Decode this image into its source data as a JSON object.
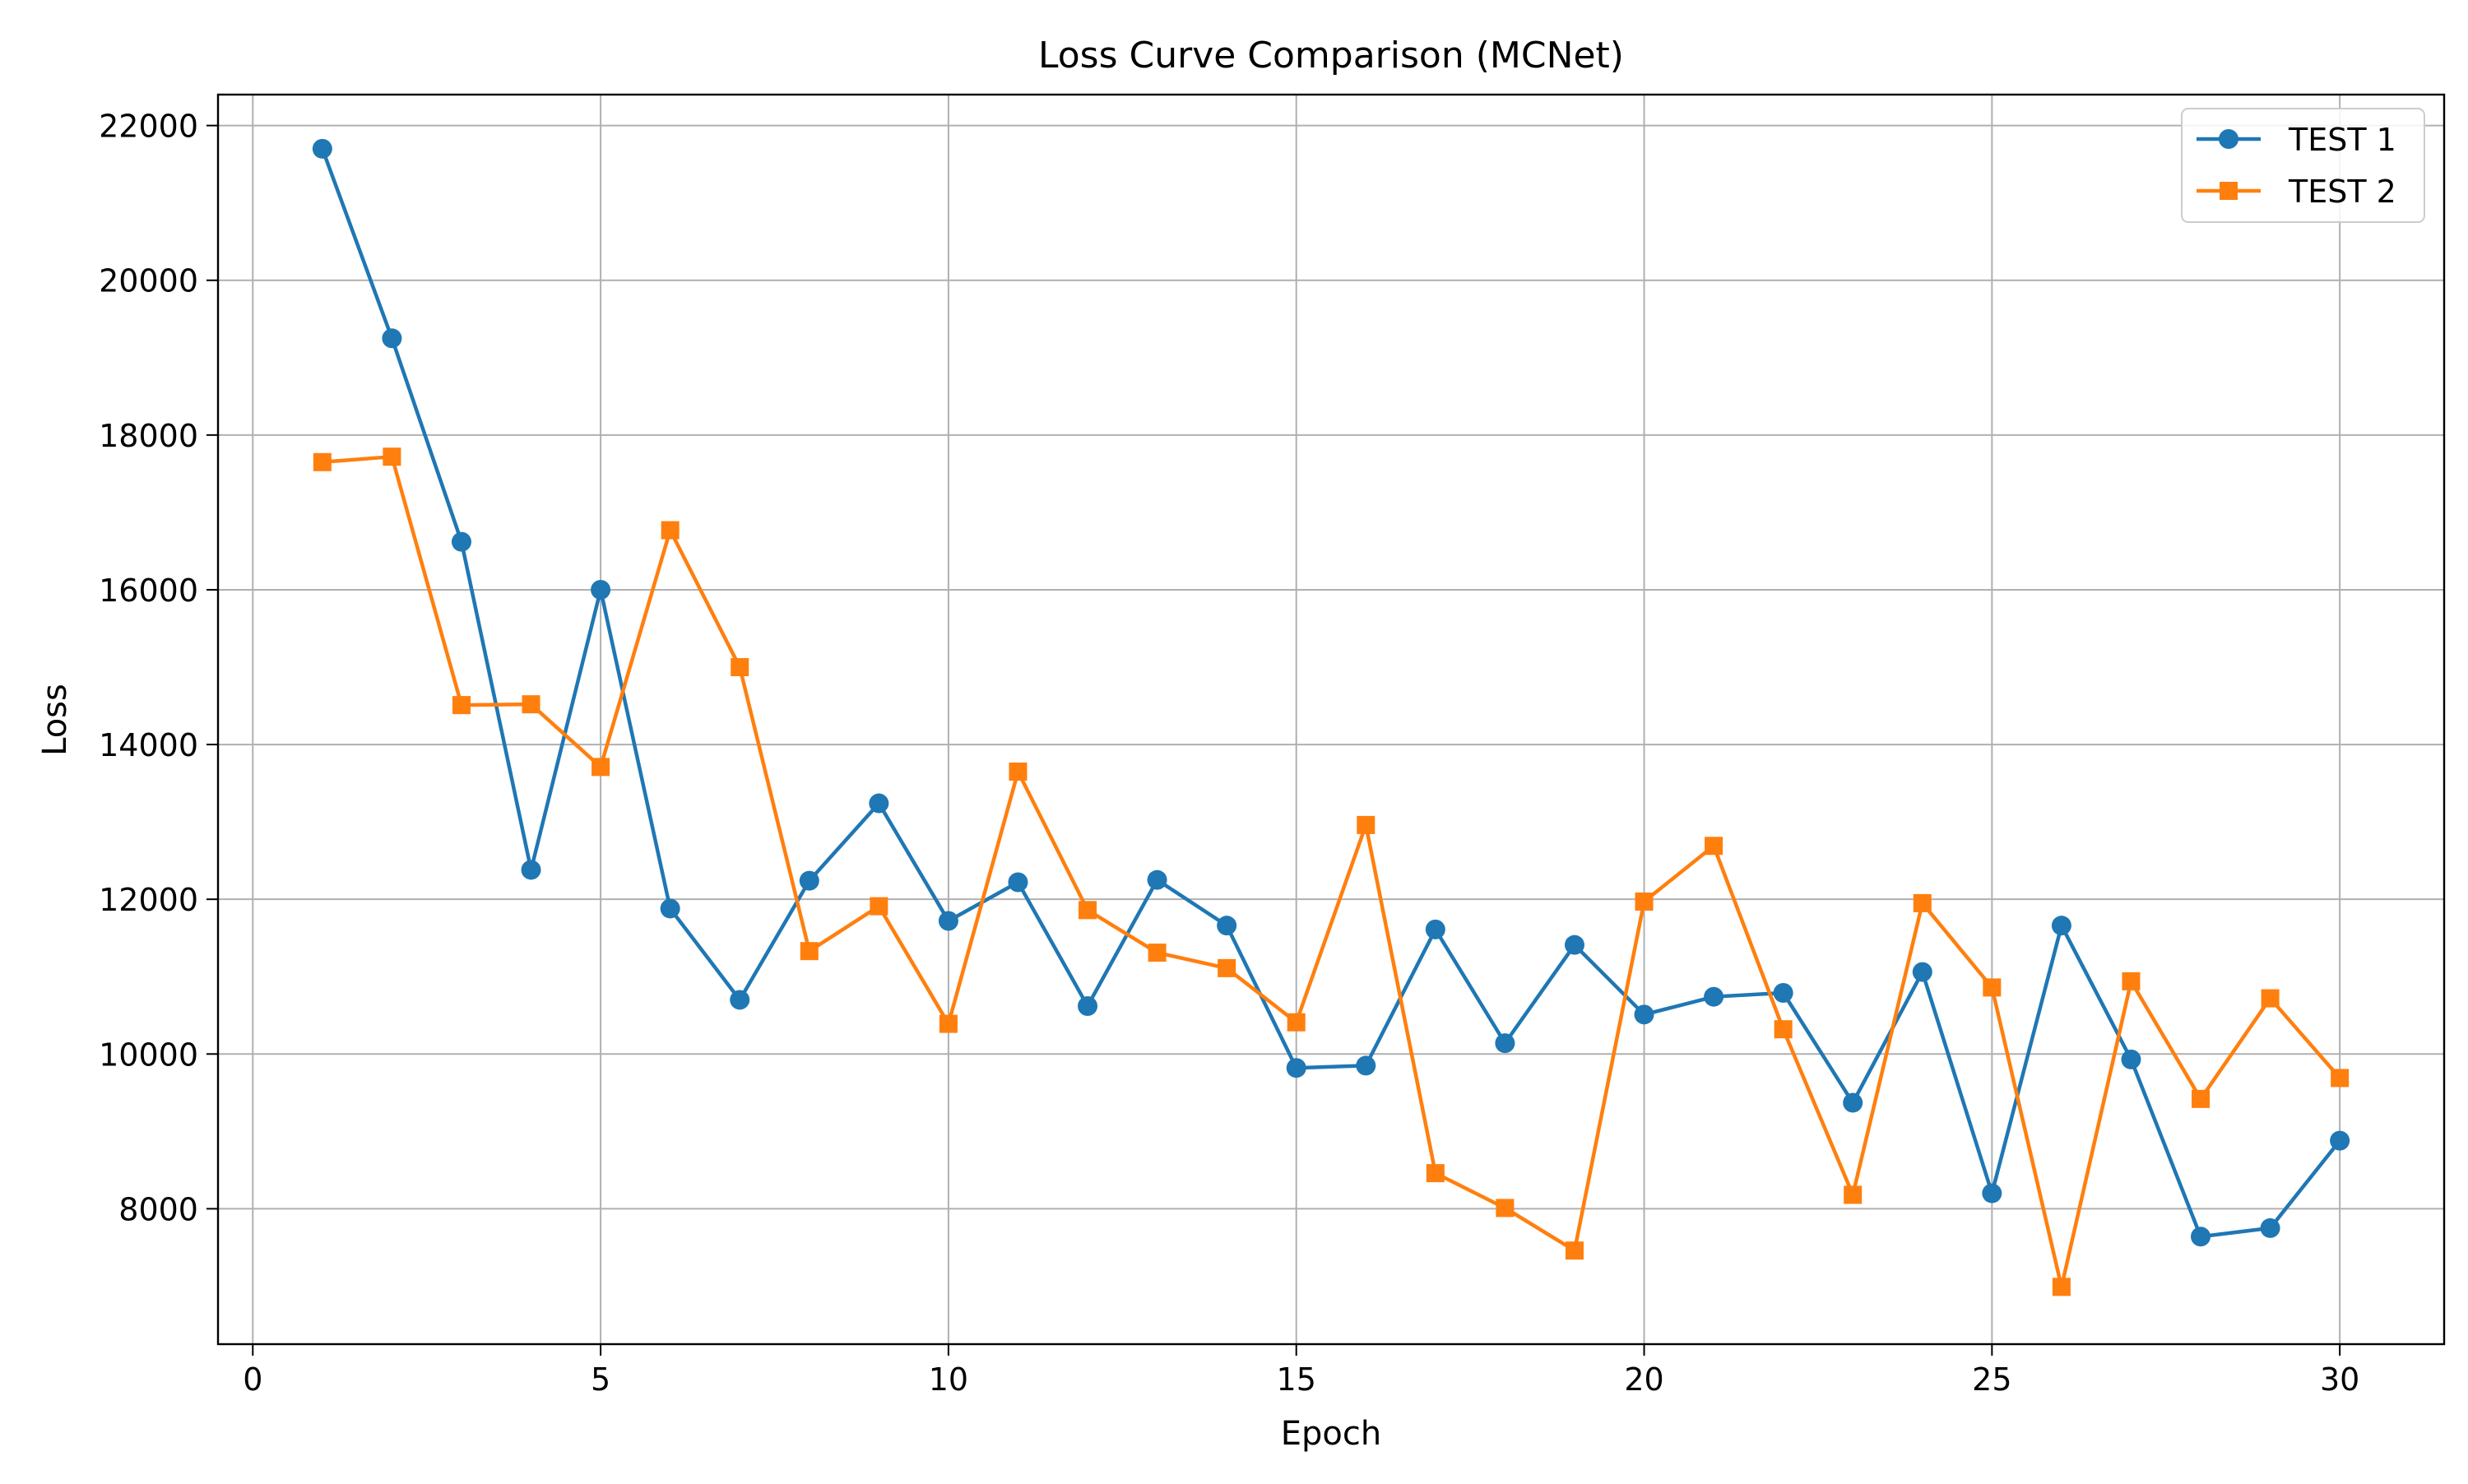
{
  "chart_data": {
    "type": "line",
    "title": "Loss Curve Comparison (MCNet)",
    "xlabel": "Epoch",
    "ylabel": "Loss",
    "xlim": [
      -0.5,
      31.5
    ],
    "ylim": [
      6250,
      22400
    ],
    "xticks": [
      0,
      5,
      10,
      15,
      20,
      25,
      30
    ],
    "yticks": [
      8000,
      10000,
      12000,
      14000,
      16000,
      18000,
      20000,
      22000
    ],
    "grid": true,
    "legend_position": "top-right",
    "x": [
      1,
      2,
      3,
      4,
      5,
      6,
      7,
      8,
      9,
      10,
      11,
      12,
      13,
      14,
      15,
      16,
      17,
      18,
      19,
      20,
      21,
      22,
      23,
      24,
      25,
      26,
      27,
      28,
      29,
      30
    ],
    "series": [
      {
        "name": "TEST 1",
        "color": "#1f77b4",
        "marker": "circle",
        "values": [
          21700,
          19250,
          16620,
          12380,
          16000,
          11880,
          10700,
          12240,
          13240,
          11720,
          12220,
          10620,
          12250,
          11660,
          9820,
          9850,
          11610,
          10140,
          11410,
          10510,
          10740,
          10790,
          9370,
          11060,
          8200,
          11660,
          9930,
          7640,
          7750,
          8880
        ]
      },
      {
        "name": "TEST 2",
        "color": "#ff7f0e",
        "marker": "square",
        "values": [
          17650,
          17720,
          14510,
          14520,
          13710,
          16770,
          15000,
          11330,
          11910,
          10390,
          13650,
          11860,
          11310,
          11110,
          10410,
          12960,
          8460,
          8010,
          7460,
          11970,
          12690,
          10320,
          8180,
          11950,
          10860,
          6990,
          10940,
          9420,
          10720,
          9690
        ]
      }
    ]
  }
}
